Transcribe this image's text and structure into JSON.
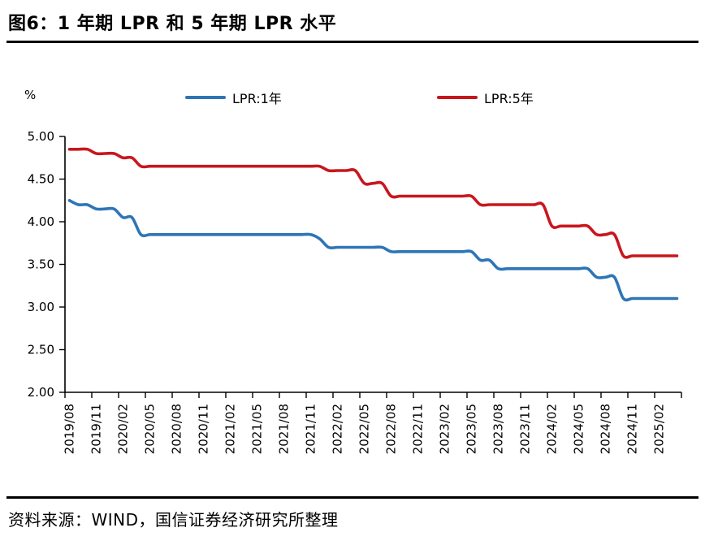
{
  "page": {
    "title": "图6：1 年期 LPR 和 5 年期 LPR 水平",
    "source": "资料来源：WIND，国信证券经济研究所整理"
  },
  "chart_data": {
    "type": "line",
    "title": "图6：1 年期 LPR 和 5 年期 LPR 水平",
    "unit_label": "%",
    "xlabel": "",
    "ylabel": "%",
    "ylim": [
      2.0,
      5.0
    ],
    "y_tick_step": 0.5,
    "y_ticks": [
      "5.00",
      "4.50",
      "4.00",
      "3.50",
      "3.00",
      "2.50",
      "2.00"
    ],
    "grid": false,
    "legend_position": "top",
    "x_tick_every_months": 3,
    "x_tick_labels": [
      "2019/08",
      "2019/11",
      "2020/02",
      "2020/05",
      "2020/08",
      "2020/11",
      "2021/02",
      "2021/05",
      "2021/08",
      "2021/11",
      "2022/02",
      "2022/05",
      "2022/08",
      "2022/11",
      "2023/02",
      "2023/05",
      "2023/08",
      "2023/11",
      "2024/02",
      "2024/05",
      "2024/08",
      "2024/11",
      "2025/02"
    ],
    "x": [
      "2019/08",
      "2019/09",
      "2019/10",
      "2019/11",
      "2019/12",
      "2020/01",
      "2020/02",
      "2020/03",
      "2020/04",
      "2020/05",
      "2020/06",
      "2020/07",
      "2020/08",
      "2020/09",
      "2020/10",
      "2020/11",
      "2020/12",
      "2021/01",
      "2021/02",
      "2021/03",
      "2021/04",
      "2021/05",
      "2021/06",
      "2021/07",
      "2021/08",
      "2021/09",
      "2021/10",
      "2021/11",
      "2021/12",
      "2022/01",
      "2022/02",
      "2022/03",
      "2022/04",
      "2022/05",
      "2022/06",
      "2022/07",
      "2022/08",
      "2022/09",
      "2022/10",
      "2022/11",
      "2022/12",
      "2023/01",
      "2023/02",
      "2023/03",
      "2023/04",
      "2023/05",
      "2023/06",
      "2023/07",
      "2023/08",
      "2023/09",
      "2023/10",
      "2023/11",
      "2023/12",
      "2024/01",
      "2024/02",
      "2024/03",
      "2024/04",
      "2024/05",
      "2024/06",
      "2024/07",
      "2024/08",
      "2024/09",
      "2024/10",
      "2024/11",
      "2024/12",
      "2025/01",
      "2025/02",
      "2025/03",
      "2025/04"
    ],
    "series": [
      {
        "name": "LPR:1年",
        "color": "#2E75B6",
        "values": [
          4.25,
          4.2,
          4.2,
          4.15,
          4.15,
          4.15,
          4.05,
          4.05,
          3.85,
          3.85,
          3.85,
          3.85,
          3.85,
          3.85,
          3.85,
          3.85,
          3.85,
          3.85,
          3.85,
          3.85,
          3.85,
          3.85,
          3.85,
          3.85,
          3.85,
          3.85,
          3.85,
          3.85,
          3.8,
          3.7,
          3.7,
          3.7,
          3.7,
          3.7,
          3.7,
          3.7,
          3.65,
          3.65,
          3.65,
          3.65,
          3.65,
          3.65,
          3.65,
          3.65,
          3.65,
          3.65,
          3.55,
          3.55,
          3.45,
          3.45,
          3.45,
          3.45,
          3.45,
          3.45,
          3.45,
          3.45,
          3.45,
          3.45,
          3.45,
          3.35,
          3.35,
          3.35,
          3.1,
          3.1,
          3.1,
          3.1,
          3.1,
          3.1,
          3.1
        ]
      },
      {
        "name": "LPR:5年",
        "color": "#C9161D",
        "values": [
          4.85,
          4.85,
          4.85,
          4.8,
          4.8,
          4.8,
          4.75,
          4.75,
          4.65,
          4.65,
          4.65,
          4.65,
          4.65,
          4.65,
          4.65,
          4.65,
          4.65,
          4.65,
          4.65,
          4.65,
          4.65,
          4.65,
          4.65,
          4.65,
          4.65,
          4.65,
          4.65,
          4.65,
          4.65,
          4.6,
          4.6,
          4.6,
          4.6,
          4.45,
          4.45,
          4.45,
          4.3,
          4.3,
          4.3,
          4.3,
          4.3,
          4.3,
          4.3,
          4.3,
          4.3,
          4.3,
          4.2,
          4.2,
          4.2,
          4.2,
          4.2,
          4.2,
          4.2,
          4.2,
          3.95,
          3.95,
          3.95,
          3.95,
          3.95,
          3.85,
          3.85,
          3.85,
          3.6,
          3.6,
          3.6,
          3.6,
          3.6,
          3.6,
          3.6
        ]
      }
    ]
  }
}
